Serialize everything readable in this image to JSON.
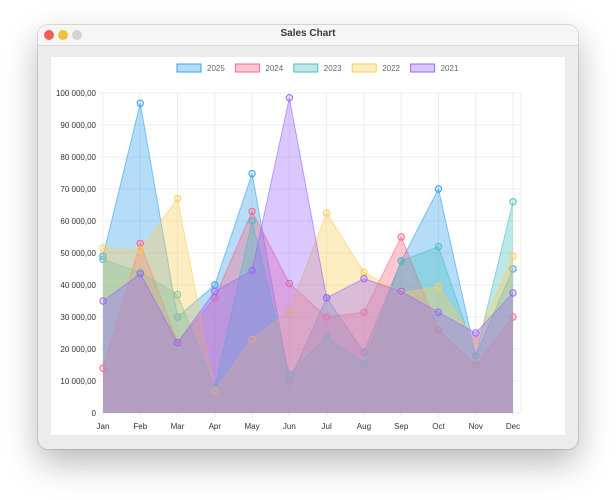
{
  "window": {
    "title": "Sales Chart"
  },
  "chart_data": {
    "type": "area",
    "categories": [
      "Jan",
      "Feb",
      "Mar",
      "Apr",
      "May",
      "Jun",
      "Jul",
      "Aug",
      "Sep",
      "Oct",
      "Nov",
      "Dec"
    ],
    "ylim": [
      0,
      100000
    ],
    "yticks": [
      "0",
      "10 000,00",
      "20 000,00",
      "30 000,00",
      "40 000,00",
      "50 000,00",
      "60 000,00",
      "70 000,00",
      "80 000,00",
      "90 000,00",
      "100 000,00"
    ],
    "legend_position": "top",
    "grid": true,
    "series": [
      {
        "name": "2025",
        "color": "#36a2eb",
        "values": [
          49000,
          96800,
          30000,
          40000,
          74800,
          10000,
          36000,
          19000,
          47500,
          70000,
          18000,
          45000
        ]
      },
      {
        "name": "2024",
        "color": "#ff6384",
        "values": [
          14000,
          53000,
          22000,
          36000,
          63000,
          40500,
          30000,
          31500,
          55000,
          26000,
          15000,
          30000
        ]
      },
      {
        "name": "2023",
        "color": "#4bc0c0",
        "values": [
          48000,
          44000,
          37000,
          8000,
          60000,
          12000,
          24000,
          15500,
          47500,
          52000,
          18000,
          66000
        ]
      },
      {
        "name": "2022",
        "color": "#ffcd56",
        "values": [
          51500,
          51000,
          67000,
          7000,
          23000,
          32000,
          62500,
          44000,
          37500,
          39500,
          22500,
          49000
        ]
      },
      {
        "name": "2021",
        "color": "#9966ff",
        "values": [
          35000,
          43500,
          22000,
          38000,
          44500,
          98500,
          36000,
          42000,
          38000,
          31500,
          25000,
          37500
        ]
      }
    ]
  }
}
